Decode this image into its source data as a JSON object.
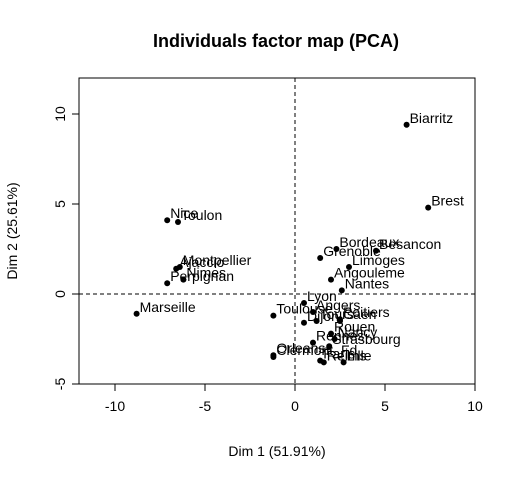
{
  "chart_data": {
    "type": "scatter",
    "title": "Individuals factor map (PCA)",
    "xlabel": "Dim 1 (51.91%)",
    "ylabel": "Dim 2 (25.61%)",
    "xlim": [
      -12,
      10
    ],
    "ylim": [
      -5,
      12
    ],
    "x_ticks": [
      -10,
      -5,
      0,
      5,
      10
    ],
    "y_ticks": [
      -5,
      0,
      5,
      10
    ],
    "reference_lines": {
      "x": 0,
      "y": 0,
      "style": "dashed"
    },
    "grid": false,
    "point_color": "#000000",
    "points": [
      {
        "label": "Biarritz",
        "x": 6.2,
        "y": 9.4
      },
      {
        "label": "Brest",
        "x": 7.4,
        "y": 4.8
      },
      {
        "label": "Toulon",
        "x": -6.5,
        "y": 4.0
      },
      {
        "label": "Nice",
        "x": -7.1,
        "y": 4.1
      },
      {
        "label": "Bordeaux",
        "x": 2.3,
        "y": 2.5
      },
      {
        "label": "Besancon",
        "x": 4.5,
        "y": 2.4
      },
      {
        "label": "Grenoble",
        "x": 1.4,
        "y": 2.0
      },
      {
        "label": "Limoges",
        "x": 3.0,
        "y": 1.5
      },
      {
        "label": "Angouleme",
        "x": 2.0,
        "y": 0.8
      },
      {
        "label": "Nantes",
        "x": 2.6,
        "y": 0.2
      },
      {
        "label": "Montpellier",
        "x": -6.4,
        "y": 1.5
      },
      {
        "label": "Ajaccio",
        "x": -6.6,
        "y": 1.4
      },
      {
        "label": "Nimes",
        "x": -6.2,
        "y": 0.8
      },
      {
        "label": "Perpignan",
        "x": -7.1,
        "y": 0.6
      },
      {
        "label": "Marseille",
        "x": -8.8,
        "y": -1.1
      },
      {
        "label": "Lyon",
        "x": 0.5,
        "y": -0.5
      },
      {
        "label": "Angers",
        "x": 1.0,
        "y": -1.0
      },
      {
        "label": "Poitiers",
        "x": 2.5,
        "y": -1.4
      },
      {
        "label": "Caen",
        "x": 2.5,
        "y": -1.5
      },
      {
        "label": "Dijon",
        "x": 0.5,
        "y": -1.6
      },
      {
        "label": "Toulouse",
        "x": -1.2,
        "y": -1.2
      },
      {
        "label": "Tours",
        "x": 1.2,
        "y": -1.5
      },
      {
        "label": "Rouen",
        "x": 2.0,
        "y": -2.2
      },
      {
        "label": "Nancy",
        "x": 2.2,
        "y": -2.5
      },
      {
        "label": "Rennes",
        "x": 1.0,
        "y": -2.7
      },
      {
        "label": "Orleans",
        "x": -1.2,
        "y": -3.4
      },
      {
        "label": "Strasbourg",
        "x": 1.9,
        "y": -2.9
      },
      {
        "label": "Paris",
        "x": 1.4,
        "y": -3.7
      },
      {
        "label": "Clermont_Fd",
        "x": -1.2,
        "y": -3.5
      },
      {
        "label": "Reims",
        "x": 1.6,
        "y": -3.8
      },
      {
        "label": "Lille",
        "x": 2.7,
        "y": -3.8
      }
    ]
  }
}
